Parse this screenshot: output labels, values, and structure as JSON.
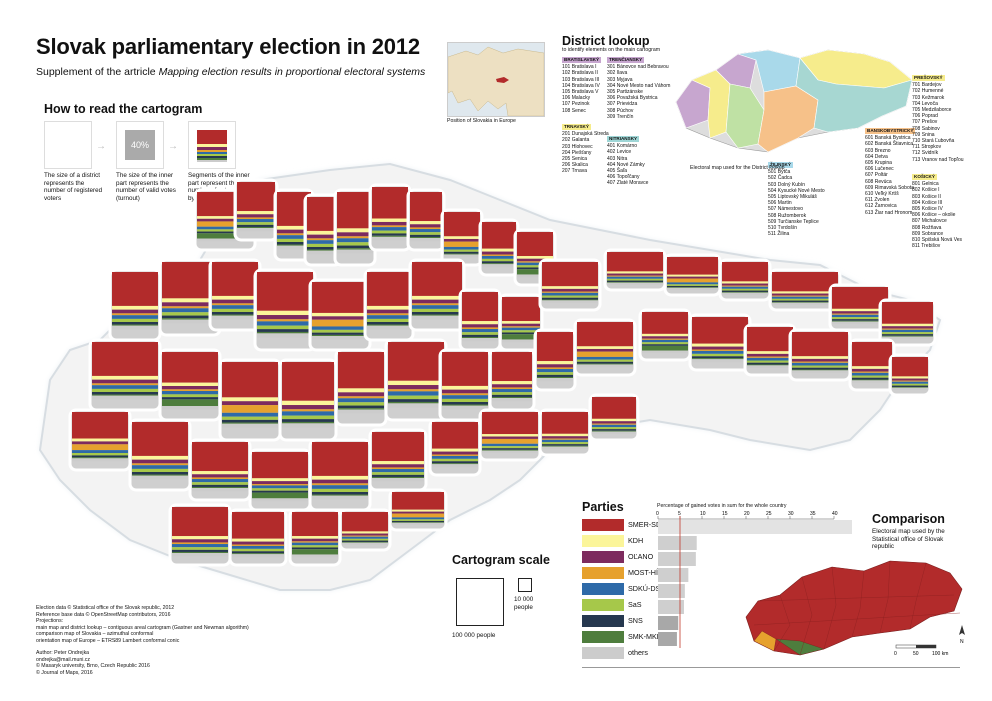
{
  "header": {
    "title": "Slovak parliamentary election in 2012",
    "subtitle_prefix": "Supplement of the artricle",
    "subtitle_article": "Mapping election results in proportional electoral systems"
  },
  "howto": {
    "heading": "How to read the cartogram",
    "caption_1": "The size of a district represents the number of registered voters",
    "caption_2": "The size of the inner part represents the number of valid votes (turnout)",
    "caption_3": "Segments of the inner part represent the number of votes gained by parties",
    "percent_example": "40%",
    "percent_value": 40
  },
  "locator": {
    "caption": "Position of Slovakia in Europe"
  },
  "lookup": {
    "heading": "District lookup",
    "sub": "to identify elements on the main cartogram",
    "regions": [
      {
        "name": "BRATISLAVSKÝ",
        "color": "#c7a6cf",
        "rows": [
          "101  Bratislava I",
          "102  Bratislava II",
          "103  Bratislava III",
          "104  Bratislava IV",
          "105  Bratislava V",
          "106  Malacky",
          "107  Pezinok",
          "108  Senec"
        ]
      },
      {
        "name": "TRNAVSKÝ",
        "color": "#f6ec8c",
        "rows": [
          "201  Dunajská Streda",
          "202  Galanta",
          "203  Hlohovec",
          "204  Piešťany",
          "205  Senica",
          "206  Skalica",
          "207  Trnava"
        ]
      },
      {
        "name": "TRENČIANSKY",
        "color": "#c7a6cf",
        "rows": [
          "301  Bánovce nad Bebravou",
          "302  Ilava",
          "303  Myjava",
          "304  Nové Mesto nad Váhom",
          "305  Partizánske",
          "306  Považská Bystrica",
          "307  Prievidza",
          "308  Púchov",
          "309  Trenčín"
        ]
      },
      {
        "name": "NITRIANSKY",
        "color": "#9fd6d6",
        "rows": [
          "401  Komárno",
          "402  Levice",
          "403  Nitra",
          "404  Nové Zámky",
          "405  Šaľa",
          "406  Topoľčany",
          "407  Zlaté Moravce"
        ]
      },
      {
        "name": "ŽILINSKÝ",
        "color": "#a9d9ea",
        "rows": [
          "501  Bytča",
          "502  Čadca",
          "503  Dolný Kubín",
          "504  Kysucké Nové Mesto",
          "505  Liptovský Mikuláš",
          "506  Martin",
          "507  Námestovo",
          "508  Ružomberok",
          "509  Turčianske Teplice",
          "510  Tvrdošín",
          "511  Žilina"
        ]
      },
      {
        "name": "BANSKOBYSTRICKÝ",
        "color": "#f6c189",
        "rows": [
          "601  Banská Bystrica",
          "602  Banská Štiavnica",
          "603  Brezno",
          "604  Detva",
          "605  Krupina",
          "606  Lučenec",
          "607  Poltár",
          "608  Revúca",
          "609  Rimavská Sobota",
          "610  Veľký Krtíš",
          "611  Zvolen",
          "612  Žarnovica",
          "613  Žiar nad Hronom"
        ]
      },
      {
        "name": "PREŠOVSKÝ",
        "color": "#f6ec8c",
        "rows": [
          "701  Bardejov",
          "702  Humenné",
          "703  Kežmarok",
          "704  Levoča",
          "705  Medzilaborce",
          "706  Poprad",
          "707  Prešov",
          "708  Sabinov",
          "709  Snina",
          "710  Stará Ľubovňa",
          "711  Stropkov",
          "712  Svidník",
          "713  Vranov nad Topľou"
        ]
      },
      {
        "name": "KOŠICKÝ",
        "color": "#f6ec8c",
        "rows": [
          "801  Gelnica",
          "802  Košice I",
          "803  Košice II",
          "804  Košice III",
          "805  Košice IV",
          "806  Košice – okolie",
          "807  Michalovce",
          "808  Rožňava",
          "809  Sobrance",
          "810  Spišská Nová Ves",
          "811  Trebišov"
        ]
      }
    ],
    "map_caption": "Electoral map used for the District lookup"
  },
  "parties": {
    "heading": "Parties",
    "axis_title": "Percentage of gained votes in sum for the whole country",
    "ticks": [
      0,
      5,
      10,
      15,
      20,
      25,
      30,
      35,
      40
    ],
    "threshold_marker": 5,
    "items": [
      {
        "name": "SMER-SD",
        "color": "#b22b2b",
        "pct": 44.4
      },
      {
        "name": "KDH",
        "color": "#fbf59a",
        "pct": 8.8
      },
      {
        "name": "OĽANO",
        "color": "#7d2b5e",
        "pct": 8.6
      },
      {
        "name": "MOST-HÍD",
        "color": "#e6a12e",
        "pct": 6.9
      },
      {
        "name": "SDKÚ-DS",
        "color": "#2e6aa8",
        "pct": 6.1
      },
      {
        "name": "SaS",
        "color": "#a6c84a",
        "pct": 5.9
      },
      {
        "name": "SNS",
        "color": "#26384f",
        "pct": 4.6
      },
      {
        "name": "SMK-MKP",
        "color": "#4e7d3d",
        "pct": 4.3
      },
      {
        "name": "others",
        "color": "#cccccc",
        "pct": 10.4
      }
    ]
  },
  "scale": {
    "heading": "Cartogram scale",
    "big_label": "100 000 people",
    "small_label": "10 000 people"
  },
  "comparison": {
    "heading": "Comparison",
    "text": "Electoral map used by the Statistical office of Slovak republic",
    "scale_ticks": [
      "0",
      "50",
      "100 km"
    ],
    "north": "N"
  },
  "credits": {
    "lines": [
      "Election data © Statistical office of the Slovak republic, 2012",
      "Reference base data © OpenStreetMap contributors, 2016",
      "Projections:",
      "main map and district lookup – contiguous areal cartogram (Gastner and Newman algorithm)",
      "comparison map of Slovakia – azimuthal conformal",
      "orientation map of Europe – ETRS89 Lambert conformal conic",
      "",
      "Author: Peter Ondrejka",
      "ondrejka@mail.muni.cz",
      "© Masaryk university, Brno, Czech Republic 2016",
      "© Journal of Maps, 2016"
    ]
  }
}
